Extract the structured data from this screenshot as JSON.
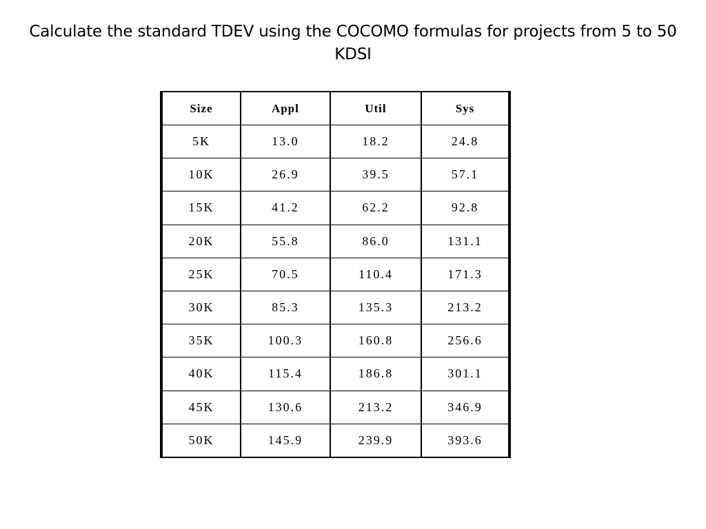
{
  "slide": {
    "title": "Calculate the standard TDEV using the COCOMO formulas for projects from 5 to 50 KDSI"
  },
  "table": {
    "headers": [
      "Size",
      "Appl",
      "Util",
      "Sys"
    ],
    "rows": [
      [
        "5K",
        "13.0",
        "18.2",
        "24.8"
      ],
      [
        "10K",
        "26.9",
        "39.5",
        "57.1"
      ],
      [
        "15K",
        "41.2",
        "62.2",
        "92.8"
      ],
      [
        "20K",
        "55.8",
        "86.0",
        "131.1"
      ],
      [
        "25K",
        "70.5",
        "110.4",
        "171.3"
      ],
      [
        "30K",
        "85.3",
        "135.3",
        "213.2"
      ],
      [
        "35K",
        "100.3",
        "160.8",
        "256.6"
      ],
      [
        "40K",
        "115.4",
        "186.8",
        "301.1"
      ],
      [
        "45K",
        "130.6",
        "213.2",
        "346.9"
      ],
      [
        "50K",
        "145.9",
        "239.9",
        "393.6"
      ]
    ]
  }
}
